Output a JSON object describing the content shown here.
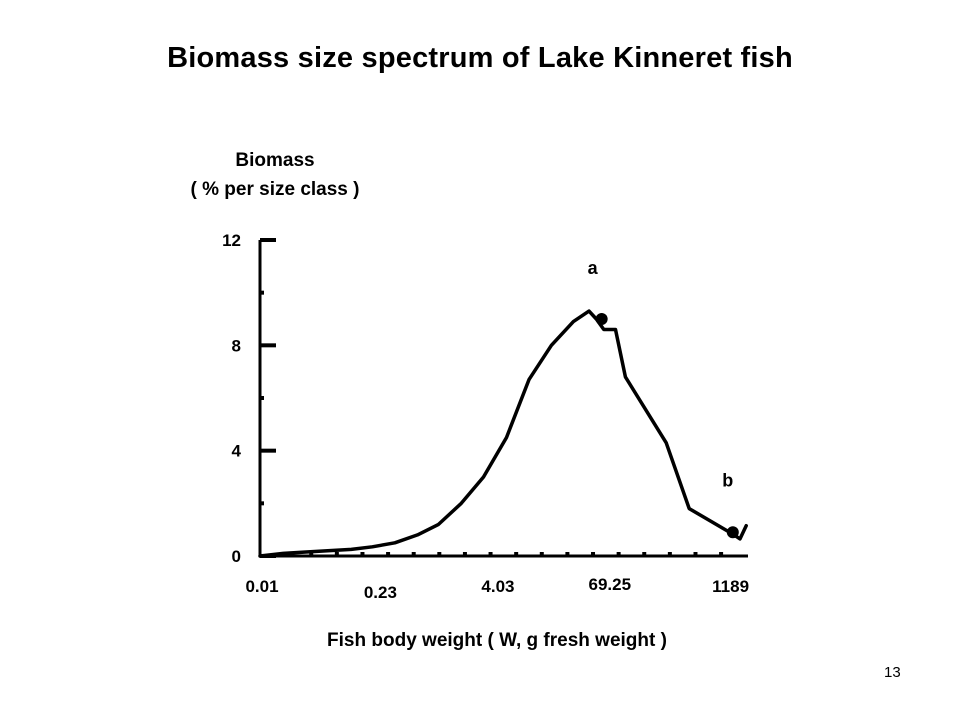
{
  "slide": {
    "title": "Biomass size spectrum of Lake Kinneret fish",
    "page_number": "13"
  },
  "chart_data": {
    "type": "line",
    "title": "Biomass size spectrum of Lake Kinneret fish",
    "ylabel_lines": [
      "Biomass",
      "( % per size class )"
    ],
    "xlabel": "Fish  body  weight ( W, g  fresh  weight )",
    "x_scale": "log",
    "x_ticks": [
      {
        "label": "0.01",
        "value": 0.01
      },
      {
        "label": "0.23",
        "value": 0.23
      },
      {
        "label": "4.03",
        "value": 4.03
      },
      {
        "label": "69.25",
        "value": 69.25
      },
      {
        "label": "1189",
        "value": 1189
      }
    ],
    "xlim": [
      0.01,
      2200
    ],
    "y_ticks": [
      "0",
      "4",
      "8",
      "12"
    ],
    "ylim": [
      0,
      12
    ],
    "grid": false,
    "legend": "none",
    "series": [
      {
        "x": [
          0.01,
          0.018,
          0.032,
          0.055,
          0.1,
          0.17,
          0.3,
          0.53,
          0.9,
          1.6,
          2.8,
          5,
          8.8,
          15.5,
          27,
          40,
          48,
          58,
          78,
          100,
          280,
          500,
          880,
          1550,
          1800,
          2100
        ],
        "y": [
          0,
          0.1,
          0.15,
          0.2,
          0.25,
          0.35,
          0.5,
          0.8,
          1.2,
          2.0,
          3.0,
          4.5,
          6.7,
          8.0,
          8.9,
          9.3,
          9.0,
          8.6,
          8.6,
          6.8,
          4.3,
          1.8,
          1.3,
          0.8,
          0.65,
          1.15
        ]
      }
    ],
    "markers": [
      {
        "label": "a",
        "x": 55,
        "y": 9.0
      },
      {
        "label": "b",
        "x": 1500,
        "y": 0.9
      }
    ]
  }
}
